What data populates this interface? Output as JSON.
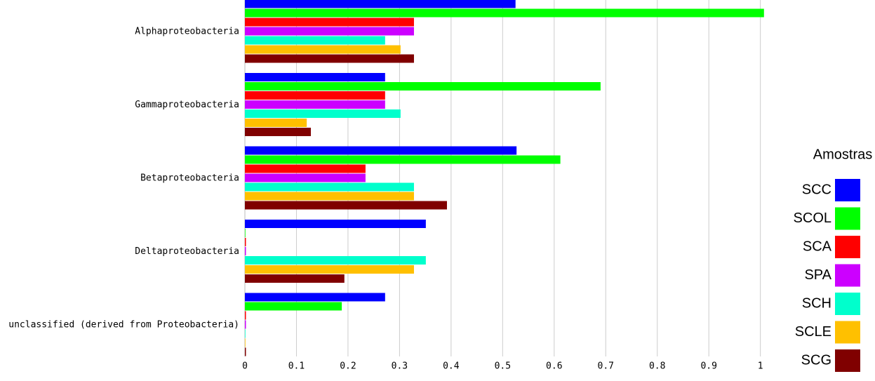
{
  "chart_data": {
    "type": "hbar",
    "categories": [
      "Alphaproteobacteria",
      "Gammaproteobacteria",
      "Betaproteobacteria",
      "Deltaproteobacteria",
      "unclassified (derived from Proteobacteria)"
    ],
    "series": [
      {
        "name": "SCC",
        "color": "#0000ff",
        "values": [
          0.525,
          0.272,
          0.527,
          0.351,
          0.272
        ]
      },
      {
        "name": "SCOL",
        "color": "#00ff00",
        "values": [
          1.007,
          0.69,
          0.612,
          0.001,
          0.188
        ]
      },
      {
        "name": "SCA",
        "color": "#ff0000",
        "values": [
          0.328,
          0.272,
          0.234,
          0.002,
          0.002
        ]
      },
      {
        "name": "SPA",
        "color": "#cc00ff",
        "values": [
          0.328,
          0.272,
          0.234,
          0.002,
          0.002
        ]
      },
      {
        "name": "SCH",
        "color": "#00ffcc",
        "values": [
          0.272,
          0.302,
          0.328,
          0.351,
          0.001
        ]
      },
      {
        "name": "SCLE",
        "color": "#ffc000",
        "values": [
          0.302,
          0.12,
          0.328,
          0.328,
          0.001
        ]
      },
      {
        "name": "SCG",
        "color": "#800000",
        "values": [
          0.328,
          0.128,
          0.392,
          0.193,
          0.002
        ]
      }
    ],
    "legend_title": "Amostras",
    "xlim": [
      0,
      1.01
    ],
    "xticks": [
      0,
      0.1,
      0.2,
      0.3,
      0.4,
      0.5,
      0.6,
      0.7,
      0.8,
      0.9,
      1
    ],
    "grid": true
  }
}
